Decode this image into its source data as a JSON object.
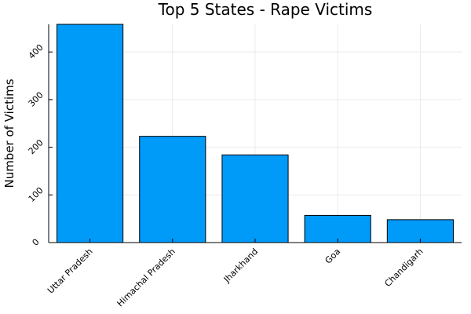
{
  "chart_data": {
    "type": "bar",
    "title": "Top 5 States - Rape Victims",
    "xlabel": "",
    "ylabel": "Number of Victims",
    "categories": [
      "Uttar Pradesh",
      "Himachal Pradesh",
      "Jharkhand",
      "Goa",
      "Chandigarh"
    ],
    "values": [
      458,
      223,
      184,
      57,
      48
    ],
    "ylim": [
      0,
      458
    ],
    "yticks": [
      0,
      100,
      200,
      300,
      400
    ],
    "grid": true,
    "legend": "none",
    "colors": {
      "bar": "#009af9",
      "bar_stroke": "#000000",
      "grid": "#e6e6e6",
      "axis": "#000000"
    }
  }
}
